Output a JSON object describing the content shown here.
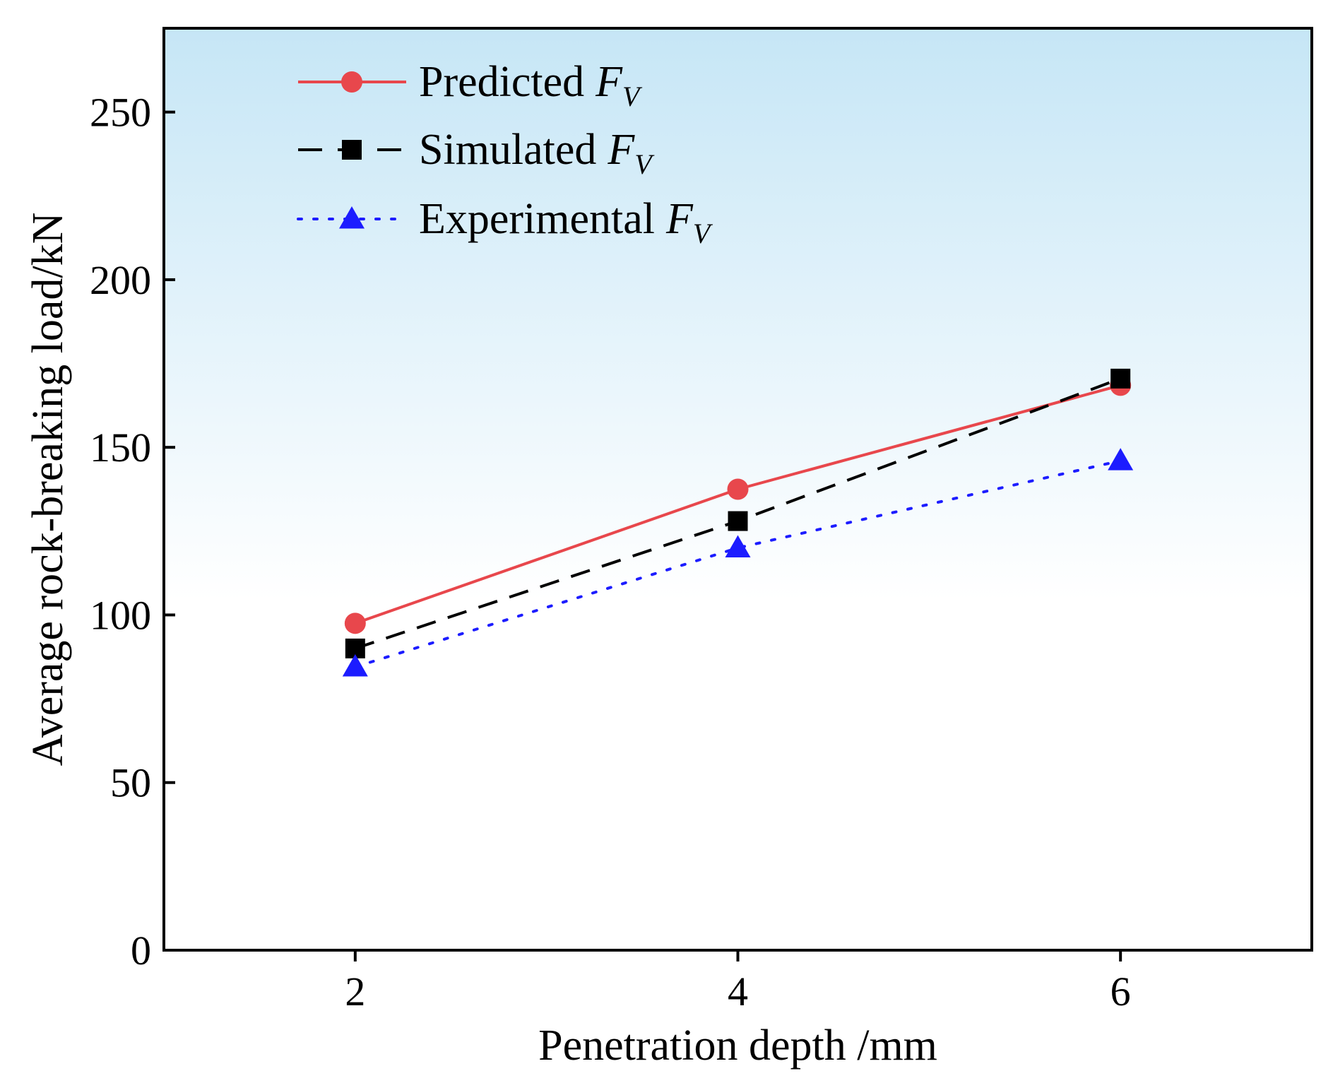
{
  "chart_data": {
    "type": "line",
    "xlabel": "Penetration depth /mm",
    "ylabel": "Average rock-breaking load/kN",
    "xlim": [
      1,
      7
    ],
    "ylim": [
      0,
      275
    ],
    "x_ticks": [
      "2",
      "4",
      "6"
    ],
    "y_ticks": [
      "0",
      "50",
      "100",
      "150",
      "200",
      "250"
    ],
    "legend_position": "top-left",
    "background": "gradient light-blue (top) to white (bottom)",
    "series": [
      {
        "name": "Predicted",
        "name_math": "F",
        "name_sub": "V",
        "color": "#e8474c",
        "line_style": "solid",
        "marker": "circle",
        "x": [
          2,
          4,
          6
        ],
        "y": [
          97.5,
          137.5,
          168.5
        ]
      },
      {
        "name": "Simulated",
        "name_math": "F",
        "name_sub": "V",
        "color": "#000000",
        "line_style": "dashed",
        "marker": "square",
        "x": [
          2,
          4,
          6
        ],
        "y": [
          90,
          128,
          170.5
        ]
      },
      {
        "name": "Experimental",
        "name_math": "F",
        "name_sub": "V",
        "color": "#1c1cff",
        "line_style": "dotted",
        "marker": "triangle",
        "x": [
          2,
          4,
          6
        ],
        "y": [
          84.5,
          120,
          146
        ]
      }
    ]
  }
}
